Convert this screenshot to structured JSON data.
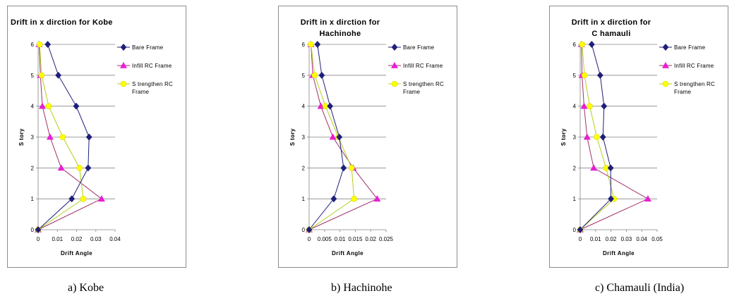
{
  "colors": {
    "bare": "#1f1f7a",
    "infill": "#a0306a",
    "infill_marker": "#e81fd2",
    "strength": "#b3d11b",
    "strength_marker": "#ffff00",
    "grid": "#868686",
    "axis": "#868686"
  },
  "chart_data": [
    {
      "type": "line",
      "title_lines": [
        "Drift  in x dirction for Kobe"
      ],
      "xlabel": "Drift  Angle",
      "ylabel": "S tory",
      "xlim": [
        0,
        0.04
      ],
      "ylim": [
        0,
        6
      ],
      "xticks": [
        0,
        0.01,
        0.02,
        0.03,
        0.04
      ],
      "xtick_labels": [
        "0",
        "0.01",
        "0.02",
        "0.03",
        "0.04"
      ],
      "yticks": [
        0,
        1,
        2,
        3,
        4,
        5,
        6
      ],
      "grid": "horizontal",
      "legend_position": "right",
      "caption": "a) Kobe",
      "series": [
        {
          "name_lines": [
            "Bare Frame"
          ],
          "marker": "diamond",
          "color_key": "bare",
          "marker_key": "bare",
          "x": [
            0,
            0.0175,
            0.026,
            0.0265,
            0.0198,
            0.0105,
            0.005
          ],
          "y": [
            0,
            1,
            2,
            3,
            4,
            5,
            6
          ]
        },
        {
          "name_lines": [
            "Infill RC Frame"
          ],
          "marker": "triangle",
          "color_key": "infill",
          "marker_key": "infill_marker",
          "x": [
            0,
            0.033,
            0.012,
            0.0062,
            0.0022,
            0.0012,
            0.0005
          ],
          "y": [
            0,
            1,
            2,
            3,
            4,
            5,
            6
          ]
        },
        {
          "name_lines": [
            "S trengthen RC",
            "Frame"
          ],
          "marker": "circle",
          "color_key": "strength",
          "marker_key": "strength_marker",
          "x": [
            0,
            0.0235,
            0.0215,
            0.0128,
            0.0055,
            0.0018,
            0.0008
          ],
          "y": [
            0,
            1,
            2,
            3,
            4,
            5,
            6
          ]
        }
      ]
    },
    {
      "type": "line",
      "title_lines": [
        "Drift  in x dirction for",
        "Hachinohe"
      ],
      "xlabel": "Drift  Angle",
      "ylabel": "S tory",
      "xlim": [
        0,
        0.025
      ],
      "ylim": [
        0,
        6
      ],
      "xticks": [
        0,
        0.005,
        0.01,
        0.015,
        0.02,
        0.025
      ],
      "xtick_labels": [
        "0",
        "0.005",
        "0.01",
        "0.015",
        "0.02",
        "0.025"
      ],
      "yticks": [
        0,
        1,
        2,
        3,
        4,
        5,
        6
      ],
      "grid": "horizontal",
      "legend_position": "right",
      "caption": "b) Hachinohe",
      "series": [
        {
          "name_lines": [
            "Bare Frame"
          ],
          "marker": "diamond",
          "color_key": "bare",
          "marker_key": "bare",
          "x": [
            0,
            0.008,
            0.0112,
            0.0098,
            0.0068,
            0.0041,
            0.0027
          ],
          "y": [
            0,
            1,
            2,
            3,
            4,
            5,
            6
          ]
        },
        {
          "name_lines": [
            "Infill RC Frame"
          ],
          "marker": "triangle",
          "color_key": "infill",
          "marker_key": "infill_marker",
          "x": [
            0,
            0.0221,
            0.0143,
            0.0077,
            0.0038,
            0.0012,
            0.0006
          ],
          "y": [
            0,
            1,
            2,
            3,
            4,
            5,
            6
          ]
        },
        {
          "name_lines": [
            "S trengthen RC",
            "Frame"
          ],
          "marker": "circle",
          "color_key": "strength",
          "marker_key": "strength_marker",
          "x": [
            0,
            0.0146,
            0.0138,
            0.0095,
            0.0053,
            0.0018,
            0.0006
          ],
          "y": [
            0,
            1,
            2,
            3,
            4,
            5,
            6
          ]
        }
      ]
    },
    {
      "type": "line",
      "title_lines": [
        "Drift  in x dirction for",
        "C hamauli"
      ],
      "xlabel": "Drift  Angle",
      "ylabel": "S tory",
      "xlim": [
        0,
        0.05
      ],
      "ylim": [
        0,
        6
      ],
      "xticks": [
        0,
        0.01,
        0.02,
        0.03,
        0.04,
        0.05
      ],
      "xtick_labels": [
        "0",
        "0.01",
        "0.02",
        "0.03",
        "0.04",
        "0.05"
      ],
      "yticks": [
        0,
        1,
        2,
        3,
        4,
        5,
        6
      ],
      "grid": "horizontal",
      "legend_position": "right",
      "caption": "c) Chamauli (India)",
      "series": [
        {
          "name_lines": [
            "Bare Frame"
          ],
          "marker": "diamond",
          "color_key": "bare",
          "marker_key": "bare",
          "x": [
            0,
            0.02,
            0.0198,
            0.0148,
            0.0155,
            0.013,
            0.0075
          ],
          "y": [
            0,
            1,
            2,
            3,
            4,
            5,
            6
          ]
        },
        {
          "name_lines": [
            "Infill RC Frame"
          ],
          "marker": "triangle",
          "color_key": "infill",
          "marker_key": "infill_marker",
          "x": [
            0,
            0.044,
            0.0088,
            0.0045,
            0.0025,
            0.0012,
            0.0008
          ],
          "y": [
            0,
            1,
            2,
            3,
            4,
            5,
            6
          ]
        },
        {
          "name_lines": [
            "S trengthen RC",
            "Frame"
          ],
          "marker": "circle",
          "color_key": "strength",
          "marker_key": "strength_marker",
          "x": [
            0,
            0.022,
            0.0168,
            0.0108,
            0.0062,
            0.0028,
            0.0012
          ],
          "y": [
            0,
            1,
            2,
            3,
            4,
            5,
            6
          ]
        }
      ]
    }
  ]
}
